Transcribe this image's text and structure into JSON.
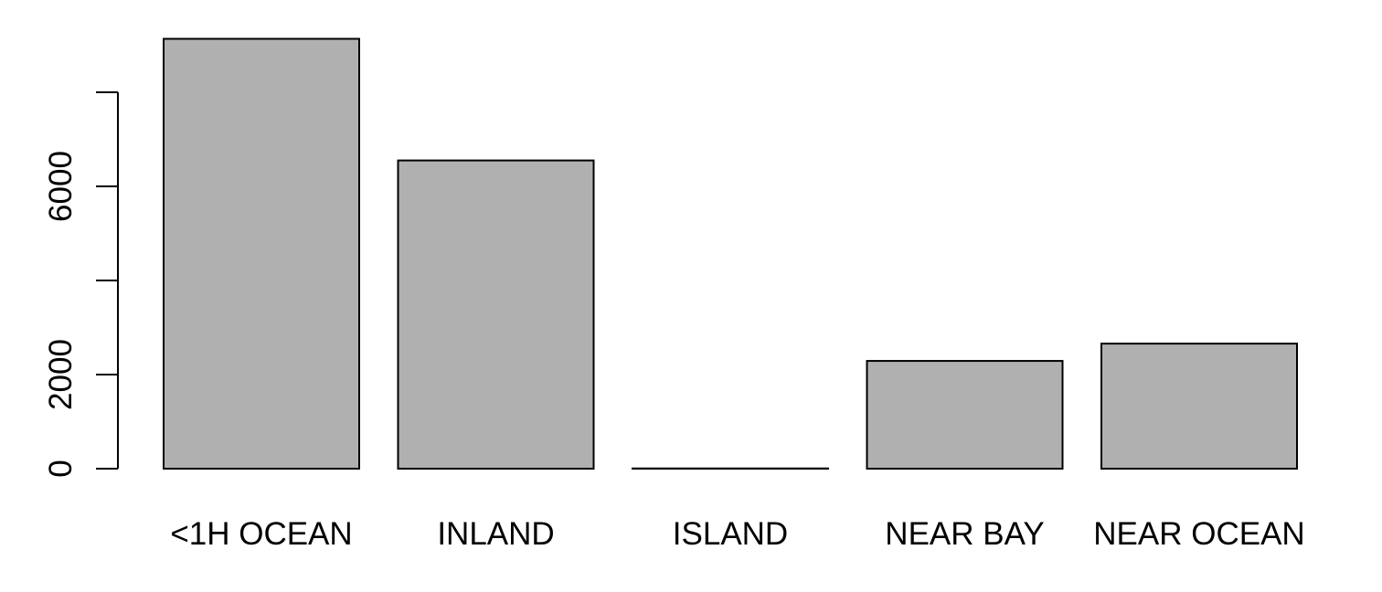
{
  "chart_data": {
    "type": "bar",
    "title": "",
    "xlabel": "",
    "ylabel": "",
    "categories": [
      "<1H OCEAN",
      "INLAND",
      "ISLAND",
      "NEAR BAY",
      "NEAR OCEAN"
    ],
    "values": [
      9136,
      6551,
      5,
      2290,
      2658
    ],
    "ylim": [
      0,
      9136
    ],
    "yticks": [
      0,
      2000,
      4000,
      6000,
      8000
    ],
    "ytick_labels": [
      "0",
      "2000",
      "",
      "6000",
      ""
    ],
    "grid": false,
    "legend": "none",
    "colors": {
      "bar_fill": "#b0b0b0",
      "bar_stroke": "#000000",
      "axis": "#000000"
    }
  }
}
